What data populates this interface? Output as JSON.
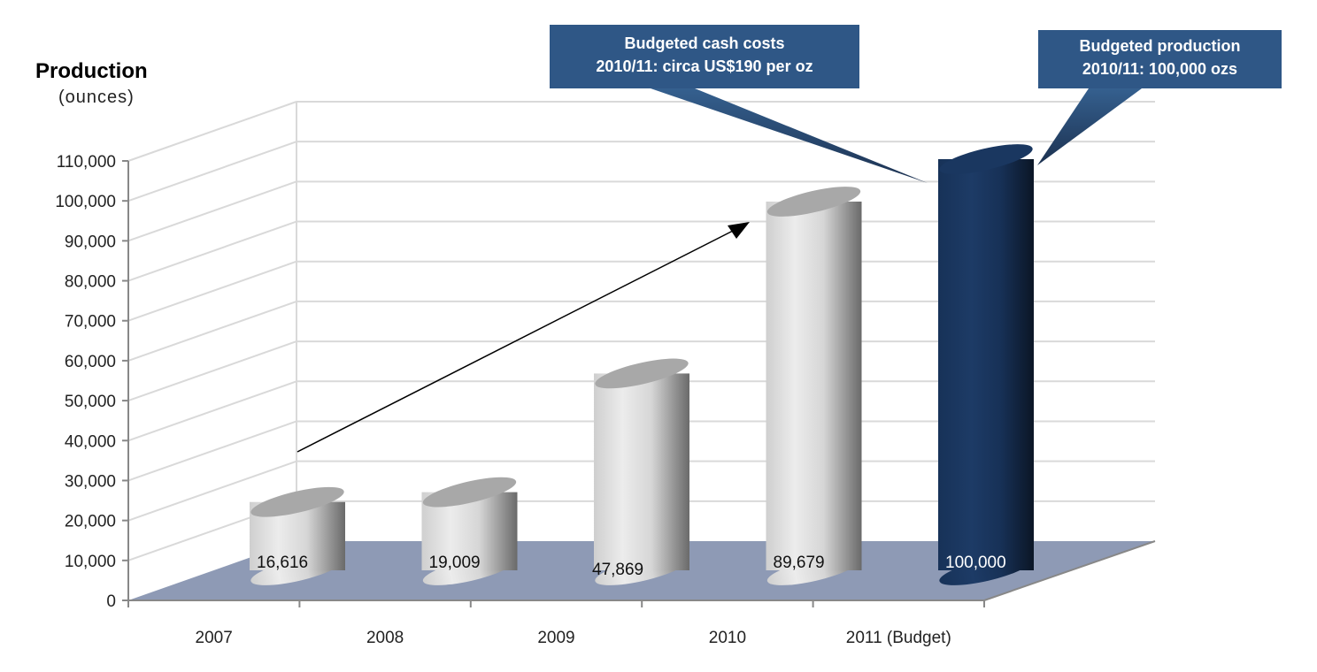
{
  "chart_data": {
    "type": "bar",
    "title": "Production",
    "ylabel": "(ounces)",
    "xlabel": "",
    "categories": [
      "2007",
      "2008",
      "2009",
      "2010",
      "2011 (Budget)"
    ],
    "values": [
      16616,
      19009,
      47869,
      89679,
      100000
    ],
    "data_labels": [
      "16,616",
      "19,009",
      "47,869",
      "89,679",
      "100,000"
    ],
    "ylim": [
      0,
      110000
    ],
    "yticks": [
      "0",
      "10,000",
      "20,000",
      "30,000",
      "40,000",
      "50,000",
      "60,000",
      "70,000",
      "80,000",
      "90,000",
      "100,000",
      "110,000"
    ],
    "grid": true,
    "style": "3d-cylinder",
    "bar_colors": [
      "#d8d8d8",
      "#d8d8d8",
      "#d8d8d8",
      "#d8d8d8",
      "#1b3a63"
    ],
    "floor_color": "#8e9ab5",
    "annotations": [
      {
        "lines": [
          "Budgeted cash costs",
          "2010/11: circa US$190 per oz"
        ],
        "color": "#2f5786"
      },
      {
        "lines": [
          "Budgeted production",
          "2010/11: 100,000 ozs"
        ],
        "color": "#2f5786"
      }
    ],
    "trend_arrow": {
      "from_category": "2007",
      "to_category": "2010"
    }
  }
}
